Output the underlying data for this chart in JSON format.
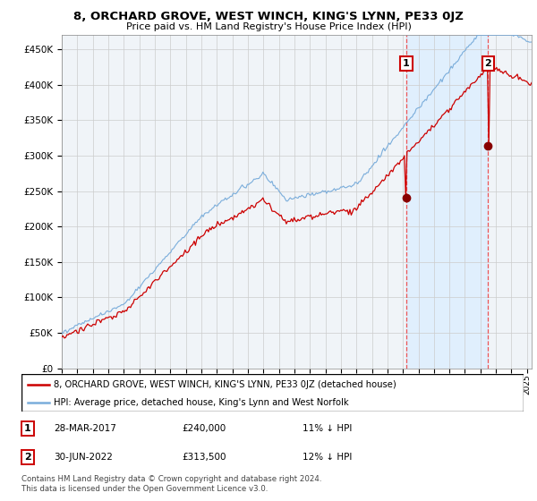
{
  "title": "8, ORCHARD GROVE, WEST WINCH, KING'S LYNN, PE33 0JZ",
  "subtitle": "Price paid vs. HM Land Registry's House Price Index (HPI)",
  "ytick_vals": [
    0,
    50000,
    100000,
    150000,
    200000,
    250000,
    300000,
    350000,
    400000,
    450000
  ],
  "ylim": [
    0,
    470000
  ],
  "xlim_start": 1995.0,
  "xlim_end": 2025.3,
  "hpi_color": "#7aaddb",
  "price_color": "#cc0000",
  "shade_color": "#ddeeff",
  "marker1_date": 2017.22,
  "marker1_price": 240000,
  "marker2_date": 2022.5,
  "marker2_price": 313500,
  "legend_entry1": "8, ORCHARD GROVE, WEST WINCH, KING'S LYNN, PE33 0JZ (detached house)",
  "legend_entry2": "HPI: Average price, detached house, King's Lynn and West Norfolk",
  "footnote": "Contains HM Land Registry data © Crown copyright and database right 2024.\nThis data is licensed under the Open Government Licence v3.0.",
  "background_color": "#ffffff",
  "grid_color": "#cccccc",
  "vline_color": "#ee4444"
}
